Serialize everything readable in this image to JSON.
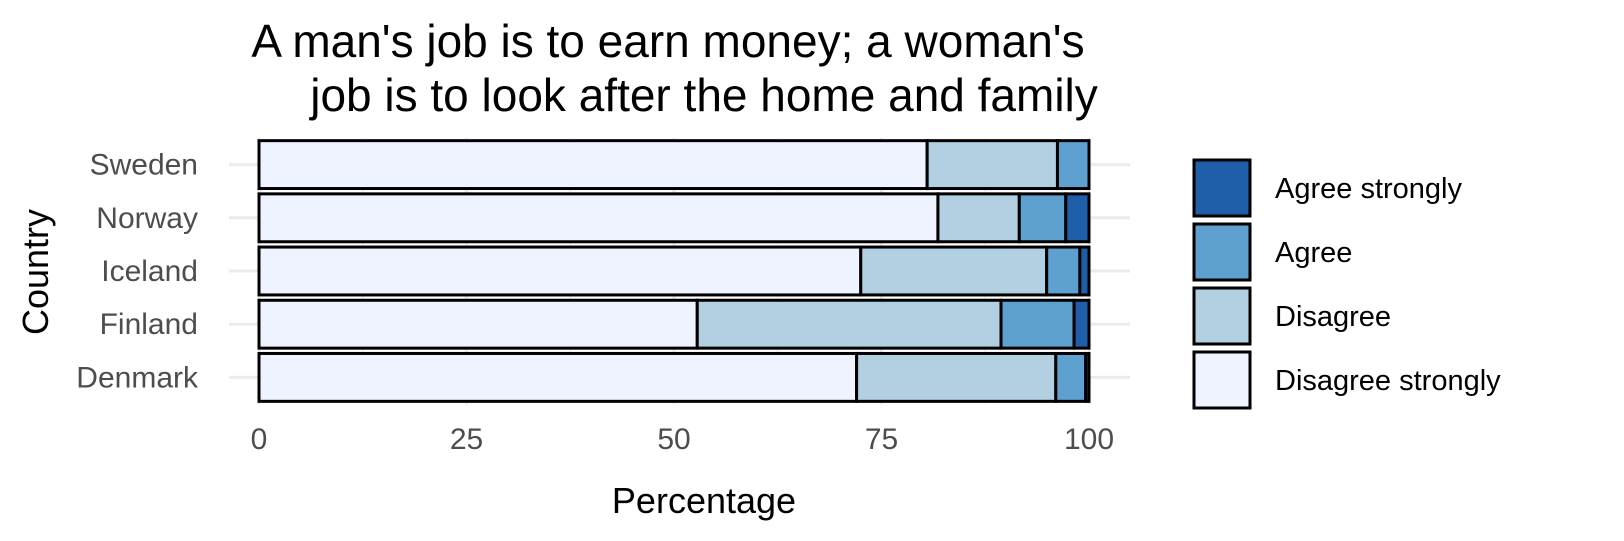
{
  "chart_data": {
    "type": "bar",
    "orientation": "horizontal",
    "stacked": true,
    "title": [
      "A man's job is to earn money; a woman's",
      "job is to look after the home and family"
    ],
    "xlabel": "Percentage",
    "ylabel": "Country",
    "xlim": [
      0,
      100
    ],
    "xticks": [
      "0",
      "25",
      "50",
      "75",
      "100"
    ],
    "categories": [
      "Denmark",
      "Finland",
      "Iceland",
      "Norway",
      "Sweden"
    ],
    "series": [
      {
        "name": "Disagree strongly",
        "color": "#eff3ff",
        "values": [
          72.0,
          52.8,
          72.5,
          81.8,
          80.5
        ]
      },
      {
        "name": "Disagree",
        "color": "#b3cfe2",
        "values": [
          24.0,
          36.6,
          22.4,
          9.8,
          15.7
        ]
      },
      {
        "name": "Agree",
        "color": "#5ea0cf",
        "values": [
          3.6,
          8.8,
          4.0,
          5.6,
          3.8
        ]
      },
      {
        "name": "Agree strongly",
        "color": "#1f5ea8",
        "values": [
          0.4,
          1.8,
          1.1,
          2.8,
          0.0
        ]
      }
    ],
    "legend_order": [
      "Agree strongly",
      "Agree",
      "Disagree",
      "Disagree strongly"
    ],
    "legend_position": "right",
    "grid": true
  }
}
